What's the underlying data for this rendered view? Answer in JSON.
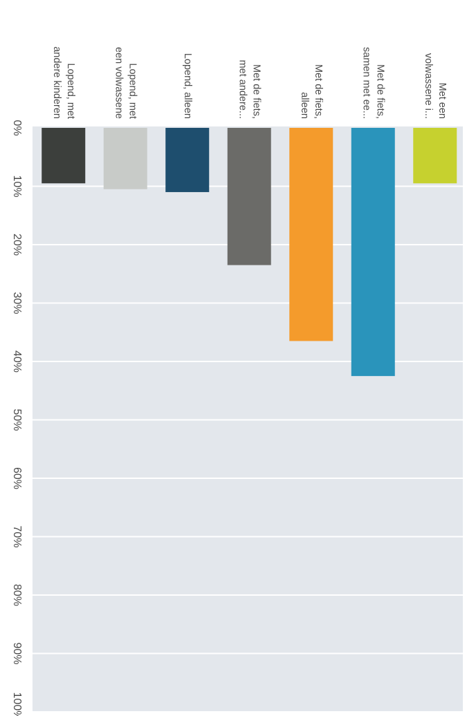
{
  "chart_data": {
    "type": "bar",
    "orientation": "rotated-90-clockwise",
    "categories": [
      [
        "Lopend, met",
        "andere kinderen"
      ],
      [
        "Lopend, met",
        "een volwassene"
      ],
      [
        "Lopend, alleen"
      ],
      [
        "Met de fiets,",
        "met andere..."
      ],
      [
        "Met de fiets,",
        "alleen"
      ],
      [
        "Met de fiets,",
        "samen met ee..."
      ],
      [
        "Met een",
        "volwassene i..."
      ]
    ],
    "values": [
      9.5,
      10.5,
      11,
      23.5,
      36.5,
      42.5,
      9.5
    ],
    "colors": [
      "#3c3f3c",
      "#c8cbc8",
      "#1e4e6e",
      "#6b6b68",
      "#f49b2c",
      "#2a94bb",
      "#c6d12f"
    ],
    "ticks": [
      "0%",
      "10%",
      "20%",
      "30%",
      "40%",
      "50%",
      "60%",
      "70%",
      "80%",
      "90%",
      "100%"
    ],
    "ylim": [
      0,
      100
    ],
    "grid": true,
    "plot_background": "#e3e7ec"
  }
}
